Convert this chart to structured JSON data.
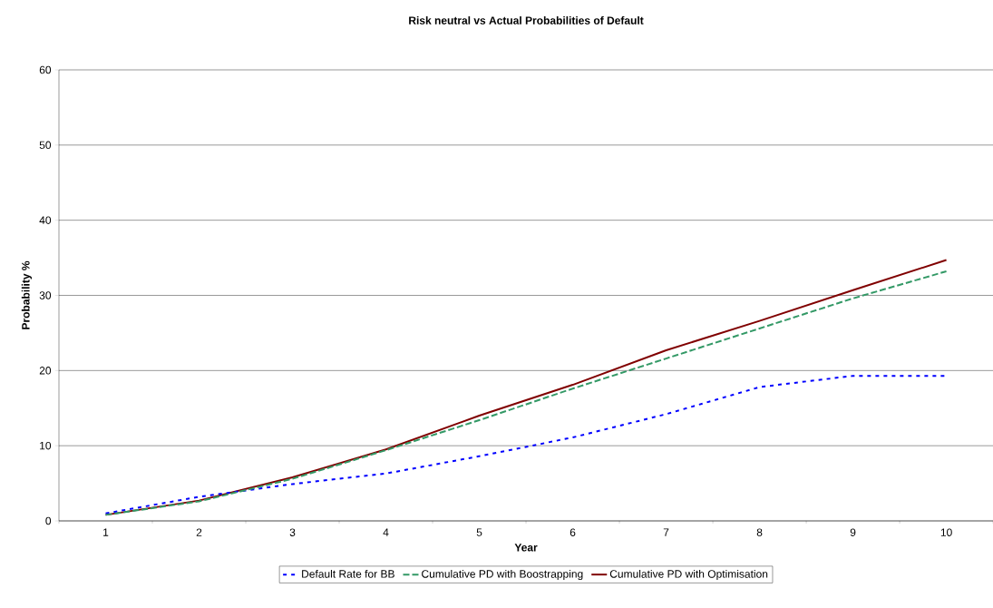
{
  "chart_data": {
    "type": "line",
    "title": "Risk neutral vs Actual Probabilities of Default",
    "xlabel": "Year",
    "ylabel": "Probability %",
    "categories": [
      "1",
      "2",
      "3",
      "4",
      "5",
      "6",
      "7",
      "8",
      "9",
      "10"
    ],
    "series": [
      {
        "name": "Default Rate for BB",
        "color": "#0000ff",
        "line_style": "dotted",
        "values": [
          1.0,
          3.2,
          4.9,
          6.3,
          8.6,
          11.1,
          14.2,
          17.8,
          19.3,
          19.3
        ]
      },
      {
        "name": "Cumulative PD with Boostrapping",
        "color": "#339966",
        "line_style": "dashed",
        "values": [
          0.8,
          2.6,
          5.6,
          9.4,
          13.4,
          17.6,
          21.6,
          25.6,
          29.6,
          33.2
        ]
      },
      {
        "name": "Cumulative PD with Optimisation",
        "color": "#800000",
        "line_style": "solid",
        "values": [
          0.8,
          2.7,
          5.8,
          9.5,
          14.0,
          18.1,
          22.7,
          26.6,
          30.7,
          34.7
        ]
      }
    ],
    "ylim": [
      0,
      60
    ],
    "yticks": [
      0,
      10,
      20,
      30,
      40,
      50,
      60
    ],
    "grid": "y",
    "legend": "bottom",
    "marker": "none"
  }
}
